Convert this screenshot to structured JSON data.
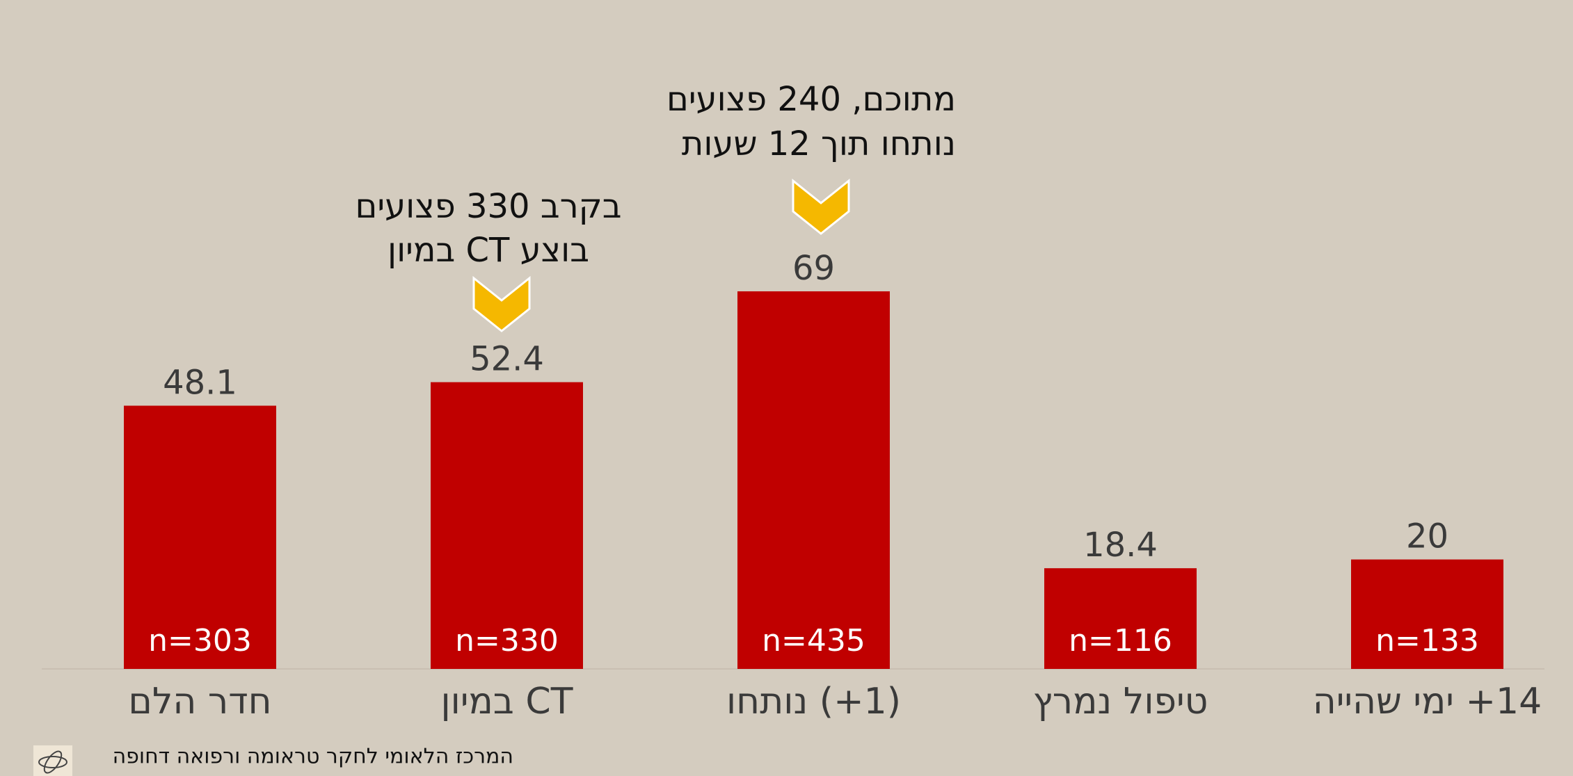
{
  "chart_data": {
    "type": "bar",
    "categories": [
      "םלה רדח",
      "ןוימב CT",
      "וחתונ (+1)",
      "ץרמנ לופיט",
      "הייהש ימי +14"
    ],
    "values": [
      48.1,
      52.4,
      69,
      18.4,
      20
    ],
    "color": "#c00000",
    "ylim": [
      0,
      100
    ],
    "n_labels": [
      "n=303",
      "n=330",
      "n=435",
      "n=116",
      "n=133"
    ],
    "annotations": [
      {
        "lines": [
          "בקרב 330 פצועים",
          "בוצע CT במיון"
        ]
      },
      {
        "lines": [
          "מתוכם, 240 פצועים",
          "נותחו תוך 12 שעות"
        ]
      }
    ],
    "source": "המרכז הלאומי לחקר טראומה ורפואה דחופה"
  }
}
